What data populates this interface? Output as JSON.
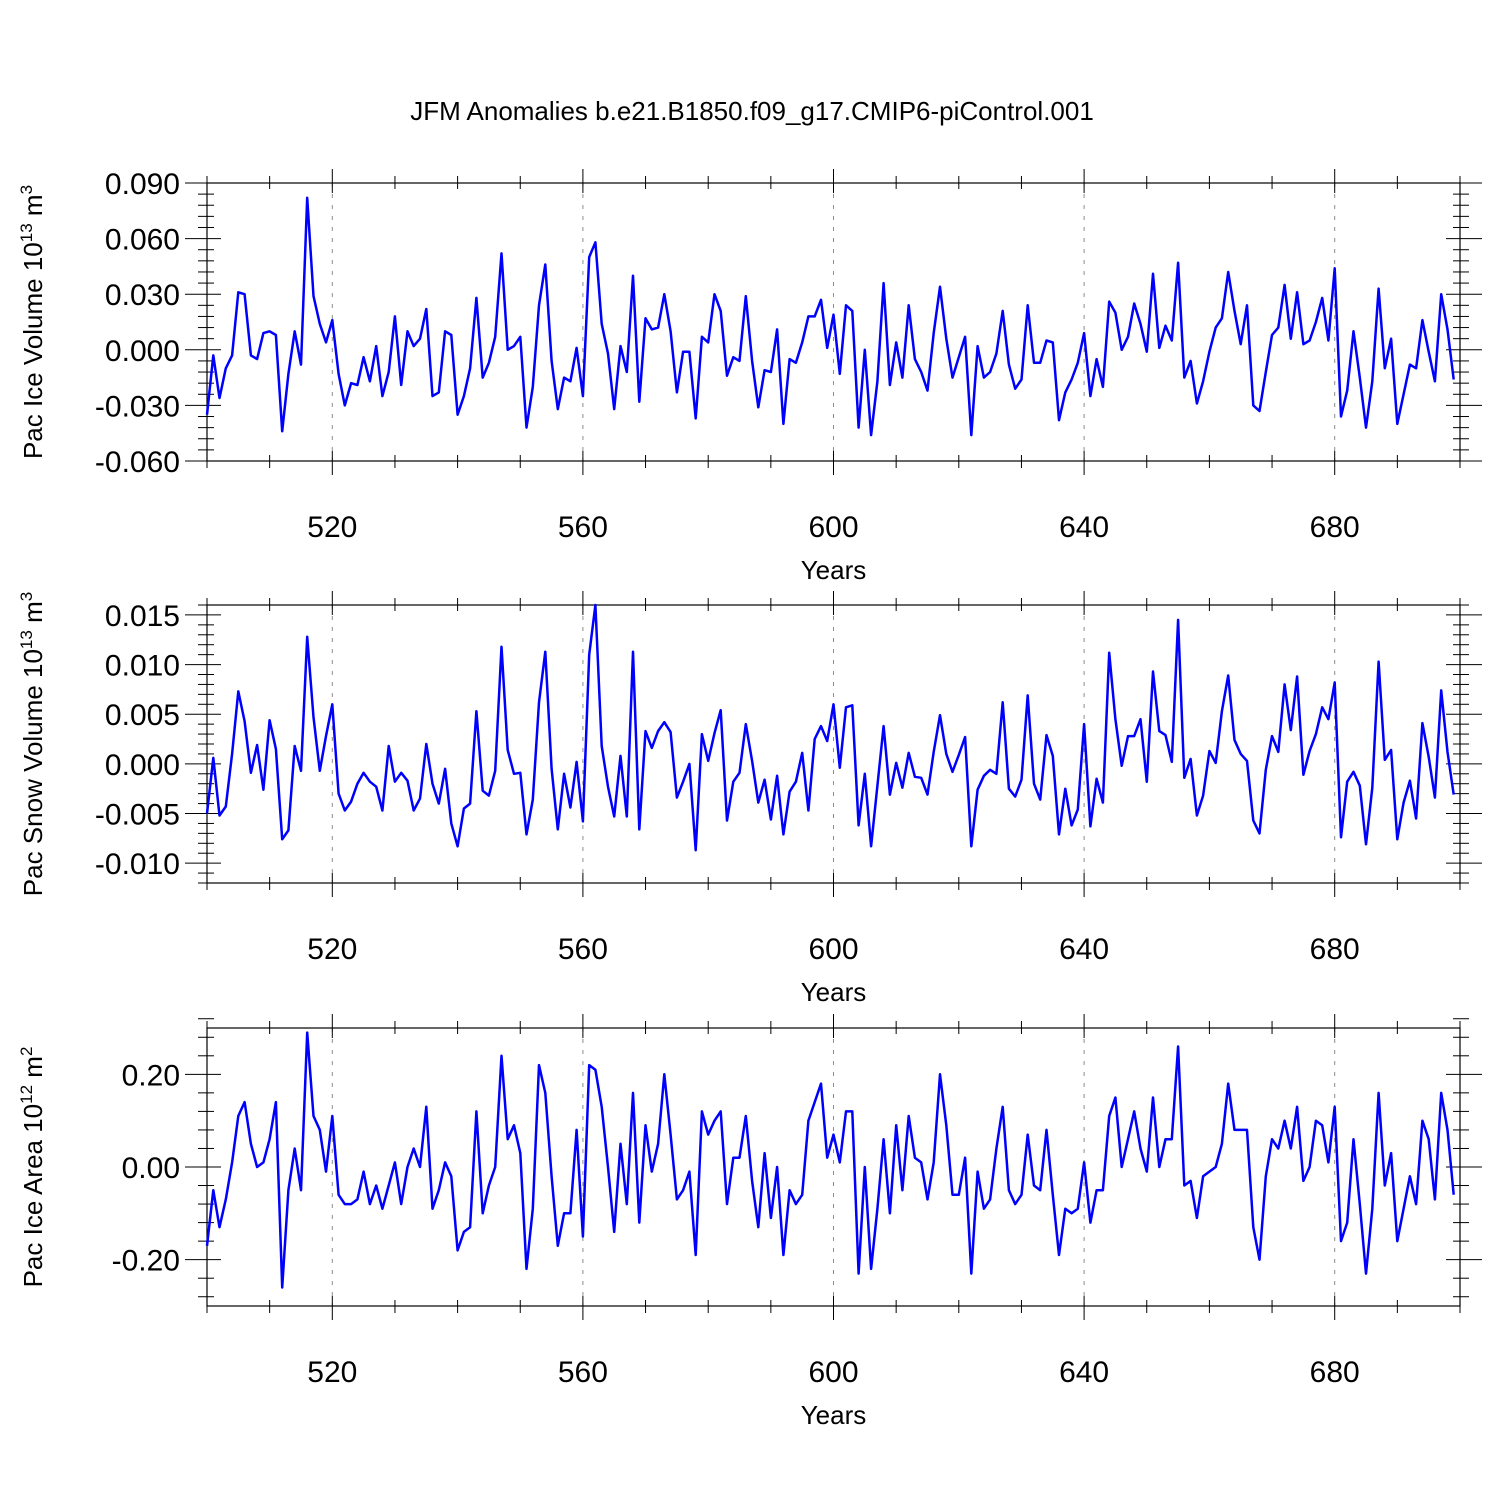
{
  "figure": {
    "title": "JFM Anomalies b.e21.B1850.f09_g17.CMIP6-piControl.001"
  },
  "chart_data": [
    {
      "type": "line",
      "name": "pac-ice-volume",
      "ylabel": "Pac Ice Volume 10",
      "ylabel_exp": "13",
      "ylabel_unit": " m",
      "ylabel_unit_exp": "3",
      "xlabel": "Years",
      "xlim": [
        500,
        700
      ],
      "ylim": [
        -0.06,
        0.09
      ],
      "xticks": [
        520,
        560,
        600,
        640,
        680
      ],
      "xtick_labels": [
        "520",
        "560",
        "600",
        "640",
        "680"
      ],
      "yticks": [
        -0.06,
        -0.03,
        0.0,
        0.03,
        0.06,
        0.09
      ],
      "ytick_labels": [
        "-0.060",
        "-0.030",
        "0.000",
        "0.030",
        "0.060",
        "0.090"
      ],
      "grid": "vertical dashed at major x ticks",
      "color": "#0000ff",
      "x_start": 500,
      "values": [
        -0.035,
        -0.003,
        -0.026,
        -0.01,
        -0.003,
        0.031,
        0.03,
        -0.003,
        -0.005,
        0.009,
        0.01,
        0.008,
        -0.044,
        -0.013,
        0.01,
        -0.008,
        0.082,
        0.029,
        0.014,
        0.004,
        0.016,
        -0.013,
        -0.03,
        -0.018,
        -0.019,
        -0.004,
        -0.017,
        0.002,
        -0.025,
        -0.012,
        0.018,
        -0.019,
        0.01,
        0.002,
        0.006,
        0.022,
        -0.025,
        -0.023,
        0.01,
        0.008,
        -0.035,
        -0.025,
        -0.01,
        0.028,
        -0.015,
        -0.007,
        0.007,
        0.052,
        0.0,
        0.002,
        0.007,
        -0.042,
        -0.02,
        0.024,
        0.046,
        -0.006,
        -0.032,
        -0.015,
        -0.017,
        0.001,
        -0.025,
        0.05,
        0.058,
        0.014,
        -0.002,
        -0.032,
        0.002,
        -0.012,
        0.04,
        -0.028,
        0.017,
        0.011,
        0.012,
        0.03,
        0.01,
        -0.023,
        -0.001,
        -0.001,
        -0.037,
        0.007,
        0.004,
        0.03,
        0.021,
        -0.014,
        -0.004,
        -0.006,
        0.029,
        -0.006,
        -0.031,
        -0.011,
        -0.012,
        0.011,
        -0.04,
        -0.005,
        -0.007,
        0.004,
        0.018,
        0.018,
        0.027,
        0.001,
        0.019,
        -0.013,
        0.024,
        0.021,
        -0.042,
        0.0,
        -0.046,
        -0.017,
        0.036,
        -0.019,
        0.004,
        -0.015,
        0.024,
        -0.005,
        -0.012,
        -0.022,
        0.009,
        0.034,
        0.006,
        -0.015,
        -0.004,
        0.007,
        -0.046,
        0.002,
        -0.015,
        -0.012,
        -0.002,
        0.021,
        -0.008,
        -0.021,
        -0.016,
        0.024,
        -0.007,
        -0.007,
        0.005,
        0.004,
        -0.038,
        -0.023,
        -0.016,
        -0.007,
        0.009,
        -0.025,
        -0.005,
        -0.02,
        0.026,
        0.02,
        0.0,
        0.007,
        0.025,
        0.014,
        -0.001,
        0.041,
        0.001,
        0.013,
        0.005,
        0.047,
        -0.015,
        -0.006,
        -0.029,
        -0.017,
        -0.001,
        0.012,
        0.017,
        0.042,
        0.021,
        0.003,
        0.024,
        -0.03,
        -0.033,
        -0.012,
        0.008,
        0.012,
        0.035,
        0.006,
        0.031,
        0.003,
        0.005,
        0.015,
        0.028,
        0.005,
        0.044,
        -0.036,
        -0.022,
        0.01,
        -0.015,
        -0.042,
        -0.017,
        0.033,
        -0.01,
        0.006,
        -0.04,
        -0.024,
        -0.008,
        -0.01,
        0.016,
        -0.001,
        -0.017,
        0.03,
        0.011,
        -0.016
      ]
    },
    {
      "type": "line",
      "name": "pac-snow-volume",
      "ylabel": "Pac Snow Volume 10",
      "ylabel_exp": "13",
      "ylabel_unit": " m",
      "ylabel_unit_exp": "3",
      "xlabel": "Years",
      "xlim": [
        500,
        700
      ],
      "ylim": [
        -0.012,
        0.016
      ],
      "xticks": [
        520,
        560,
        600,
        640,
        680
      ],
      "xtick_labels": [
        "520",
        "560",
        "600",
        "640",
        "680"
      ],
      "yticks": [
        -0.01,
        -0.005,
        0.0,
        0.005,
        0.01,
        0.015
      ],
      "ytick_labels": [
        "-0.010",
        "-0.005",
        "0.000",
        "0.005",
        "0.010",
        "0.015"
      ],
      "grid": "vertical dashed at major x ticks",
      "color": "#0000ff",
      "x_start": 500,
      "values": [
        -0.005,
        0.0006,
        -0.0052,
        -0.0043,
        0.001,
        0.0073,
        0.0043,
        -0.0009,
        0.0019,
        -0.0026,
        0.0044,
        0.0015,
        -0.0076,
        -0.0067,
        0.0018,
        -0.0007,
        0.0128,
        0.0047,
        -0.0007,
        0.0028,
        0.006,
        -0.003,
        -0.0047,
        -0.0038,
        -0.002,
        -0.0009,
        -0.0018,
        -0.0023,
        -0.0047,
        0.0018,
        -0.0018,
        -0.0009,
        -0.0017,
        -0.0047,
        -0.0035,
        0.002,
        -0.002,
        -0.004,
        -0.0005,
        -0.006,
        -0.0083,
        -0.0045,
        -0.004,
        0.0053,
        -0.0027,
        -0.0032,
        -0.0007,
        0.0118,
        0.0014,
        -0.001,
        -0.0009,
        -0.0071,
        -0.0036,
        0.0062,
        0.0113,
        -0.0005,
        -0.0066,
        -0.001,
        -0.0044,
        0.0002,
        -0.0058,
        0.011,
        0.016,
        0.0018,
        -0.0023,
        -0.0053,
        0.0008,
        -0.0053,
        0.0113,
        -0.0066,
        0.0033,
        0.0016,
        0.0033,
        0.0042,
        0.0032,
        -0.0034,
        -0.0018,
        0.0,
        -0.0087,
        0.003,
        0.0003,
        0.0031,
        0.0054,
        -0.0057,
        -0.0018,
        -0.0009,
        0.004,
        0.0003,
        -0.0039,
        -0.0016,
        -0.0056,
        -0.0012,
        -0.0071,
        -0.0028,
        -0.0018,
        0.0011,
        -0.0047,
        0.0025,
        0.0038,
        0.0023,
        0.006,
        -0.0004,
        0.0057,
        0.0059,
        -0.0062,
        -0.001,
        -0.0083,
        -0.0022,
        0.0038,
        -0.0031,
        0.0001,
        -0.0024,
        0.0011,
        -0.0013,
        -0.0014,
        -0.0031,
        0.0012,
        0.0049,
        0.001,
        -0.0008,
        0.0009,
        0.0027,
        -0.0083,
        -0.0026,
        -0.0012,
        -0.0006,
        -0.001,
        0.0062,
        -0.0025,
        -0.0033,
        -0.0016,
        0.0069,
        -0.002,
        -0.0036,
        0.0029,
        0.0008,
        -0.0071,
        -0.0025,
        -0.0062,
        -0.0046,
        0.004,
        -0.0063,
        -0.0015,
        -0.0039,
        0.0112,
        0.0045,
        -0.0002,
        0.0028,
        0.0028,
        0.0045,
        -0.0018,
        0.0093,
        0.0033,
        0.0029,
        0.0002,
        0.0145,
        -0.0014,
        0.0005,
        -0.0052,
        -0.0032,
        0.0013,
        0.0001,
        0.0053,
        0.0089,
        0.0024,
        0.001,
        0.0003,
        -0.0057,
        -0.007,
        -0.0006,
        0.0028,
        0.0012,
        0.008,
        0.0034,
        0.0088,
        -0.0011,
        0.0013,
        0.003,
        0.0057,
        0.0045,
        0.0082,
        -0.0074,
        -0.0018,
        -0.0008,
        -0.0022,
        -0.0081,
        -0.0024,
        0.0103,
        0.0004,
        0.0014,
        -0.0076,
        -0.0039,
        -0.0017,
        -0.0055,
        0.0041,
        0.0007,
        -0.0034,
        0.0074,
        0.0012,
        -0.0031
      ]
    },
    {
      "type": "line",
      "name": "pac-ice-area",
      "ylabel": "Pac Ice Area 10",
      "ylabel_exp": "12",
      "ylabel_unit": " m",
      "ylabel_unit_exp": "2",
      "xlabel": "Years",
      "xlim": [
        500,
        700
      ],
      "ylim": [
        -0.3,
        0.3
      ],
      "xticks": [
        520,
        560,
        600,
        640,
        680
      ],
      "xtick_labels": [
        "520",
        "560",
        "600",
        "640",
        "680"
      ],
      "yticks": [
        -0.2,
        0.0,
        0.2
      ],
      "ytick_labels": [
        "-0.20",
        "0.00",
        "0.20"
      ],
      "grid": "vertical dashed at major x ticks",
      "color": "#0000ff",
      "x_start": 500,
      "values": [
        -0.17,
        -0.05,
        -0.13,
        -0.07,
        0.01,
        0.11,
        0.14,
        0.05,
        0.0,
        0.01,
        0.06,
        0.14,
        -0.26,
        -0.05,
        0.04,
        -0.05,
        0.29,
        0.11,
        0.08,
        -0.01,
        0.11,
        -0.06,
        -0.08,
        -0.08,
        -0.07,
        -0.01,
        -0.08,
        -0.04,
        -0.09,
        -0.04,
        0.01,
        -0.08,
        0.0,
        0.04,
        0.0,
        0.13,
        -0.09,
        -0.05,
        0.01,
        -0.02,
        -0.18,
        -0.14,
        -0.13,
        0.12,
        -0.1,
        -0.04,
        0.0,
        0.24,
        0.06,
        0.09,
        0.03,
        -0.22,
        -0.09,
        0.22,
        0.16,
        -0.02,
        -0.17,
        -0.1,
        -0.1,
        0.08,
        -0.15,
        0.22,
        0.21,
        0.13,
        0.0,
        -0.14,
        0.05,
        -0.08,
        0.16,
        -0.12,
        0.09,
        -0.01,
        0.05,
        0.2,
        0.07,
        -0.07,
        -0.05,
        -0.01,
        -0.19,
        0.12,
        0.07,
        0.1,
        0.12,
        -0.08,
        0.02,
        0.02,
        0.11,
        -0.03,
        -0.13,
        0.03,
        -0.11,
        0.0,
        -0.19,
        -0.05,
        -0.08,
        -0.06,
        0.1,
        0.14,
        0.18,
        0.02,
        0.07,
        0.01,
        0.12,
        0.12,
        -0.23,
        0.0,
        -0.22,
        -0.09,
        0.06,
        -0.1,
        0.09,
        -0.05,
        0.11,
        0.02,
        0.01,
        -0.07,
        0.01,
        0.2,
        0.09,
        -0.06,
        -0.06,
        0.02,
        -0.23,
        -0.01,
        -0.09,
        -0.07,
        0.04,
        0.13,
        -0.05,
        -0.08,
        -0.06,
        0.07,
        -0.04,
        -0.05,
        0.08,
        -0.06,
        -0.19,
        -0.09,
        -0.1,
        -0.09,
        0.01,
        -0.12,
        -0.05,
        -0.05,
        0.11,
        0.15,
        0.0,
        0.06,
        0.12,
        0.04,
        -0.01,
        0.15,
        0.0,
        0.06,
        0.06,
        0.26,
        -0.04,
        -0.03,
        -0.11,
        -0.02,
        -0.01,
        0.0,
        0.05,
        0.18,
        0.08,
        0.08,
        0.08,
        -0.13,
        -0.2,
        -0.02,
        0.06,
        0.04,
        0.1,
        0.04,
        0.13,
        -0.03,
        0.0,
        0.1,
        0.09,
        0.01,
        0.13,
        -0.16,
        -0.12,
        0.06,
        -0.08,
        -0.23,
        -0.09,
        0.16,
        -0.04,
        0.03,
        -0.16,
        -0.09,
        -0.02,
        -0.08,
        0.1,
        0.06,
        -0.07,
        0.16,
        0.08,
        -0.06
      ]
    }
  ]
}
